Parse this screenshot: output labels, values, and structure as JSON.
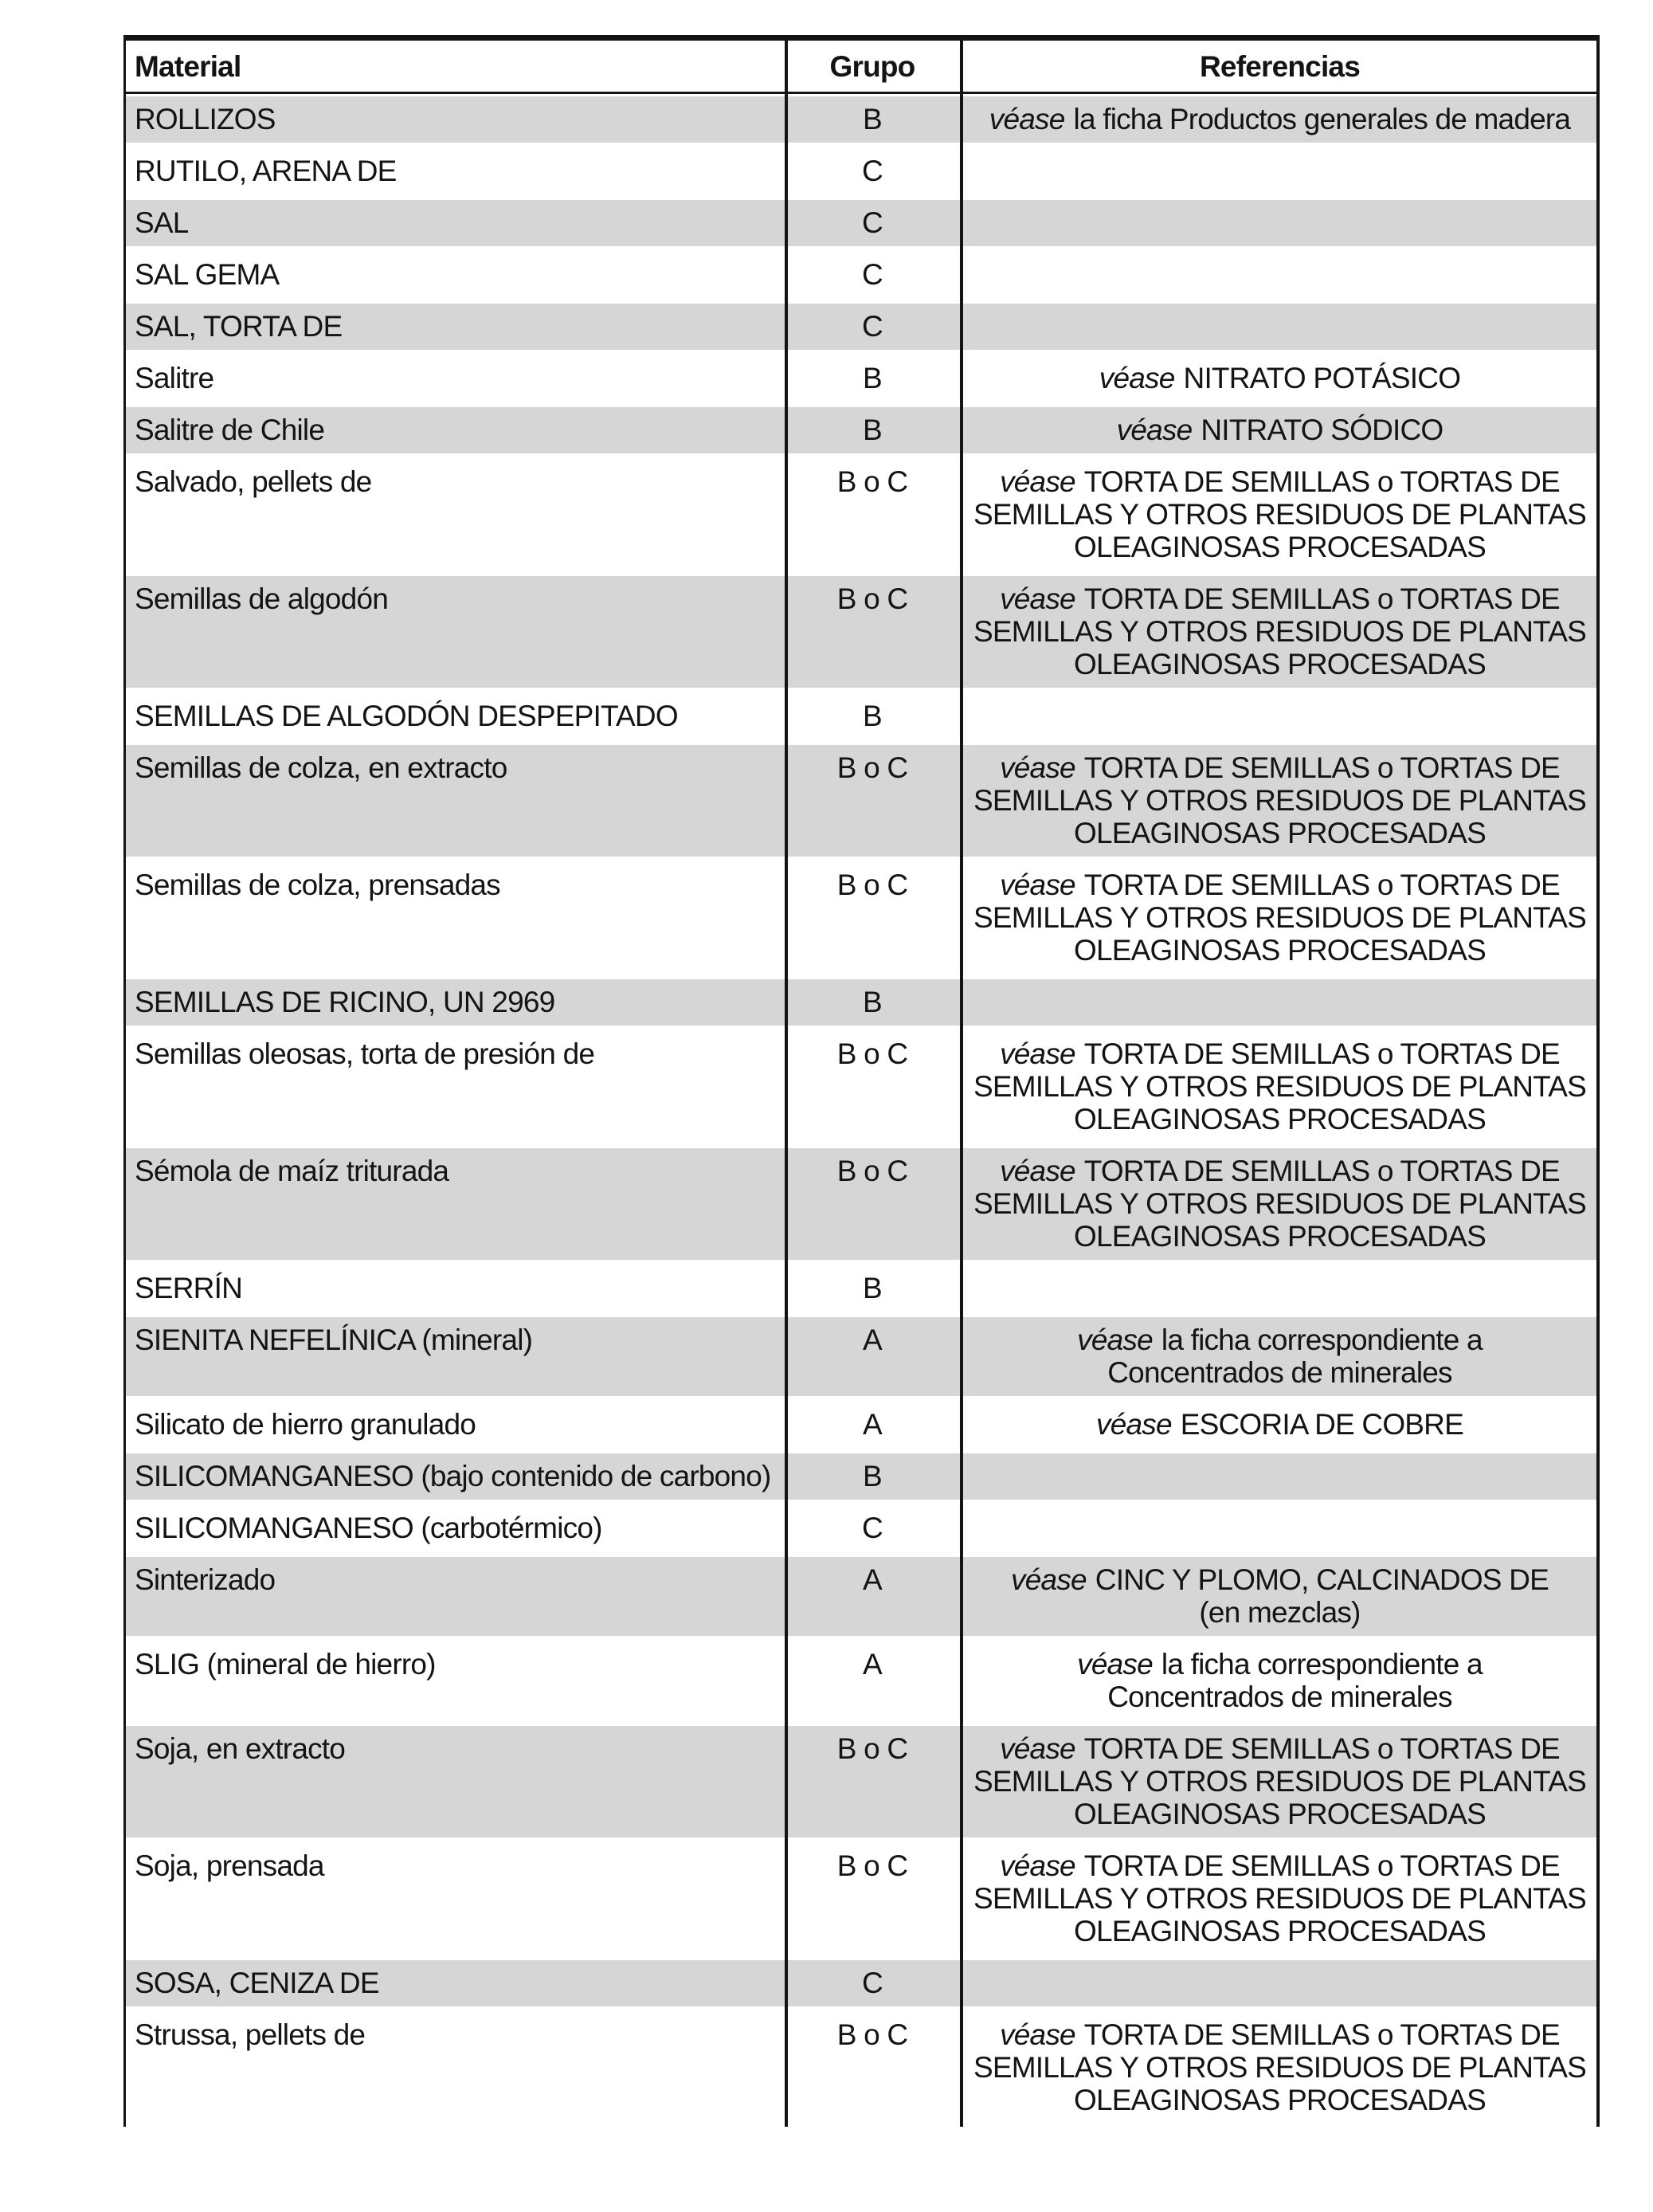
{
  "colors": {
    "shade": "#d6d6d6",
    "line": "#141414"
  },
  "table": {
    "headers": {
      "material": "Material",
      "grupo": "Grupo",
      "referencias": "Referencias"
    },
    "rows": [
      {
        "material": "ROLLIZOS",
        "grupo": "B",
        "ref_lead": "véase",
        "ref_rest": "la ficha Productos generales de madera"
      },
      {
        "material": "RUTILO, ARENA DE",
        "grupo": "C",
        "ref_lead": "",
        "ref_rest": ""
      },
      {
        "material": "SAL",
        "grupo": "C",
        "ref_lead": "",
        "ref_rest": ""
      },
      {
        "material": "SAL GEMA",
        "grupo": "C",
        "ref_lead": "",
        "ref_rest": ""
      },
      {
        "material": "SAL, TORTA DE",
        "grupo": "C",
        "ref_lead": "",
        "ref_rest": ""
      },
      {
        "material": "Salitre",
        "grupo": "B",
        "ref_lead": "véase",
        "ref_rest": "NITRATO POTÁSICO"
      },
      {
        "material": "Salitre de Chile",
        "grupo": "B",
        "ref_lead": "véase",
        "ref_rest": "NITRATO SÓDICO"
      },
      {
        "material": "Salvado, pellets de",
        "grupo": "B o C",
        "ref_lead": "véase",
        "ref_rest": "TORTA DE SEMILLAS o TORTAS DE\nSEMILLAS Y OTROS RESIDUOS DE PLANTAS\nOLEAGINOSAS PROCESADAS"
      },
      {
        "material": "Semillas de algodón",
        "grupo": "B o C",
        "ref_lead": "véase",
        "ref_rest": "TORTA DE SEMILLAS o TORTAS DE\nSEMILLAS Y OTROS RESIDUOS DE PLANTAS\nOLEAGINOSAS PROCESADAS"
      },
      {
        "material": "SEMILLAS DE ALGODÓN DESPEPITADO",
        "grupo": "B",
        "ref_lead": "",
        "ref_rest": ""
      },
      {
        "material": "Semillas de colza, en extracto",
        "grupo": "B o C",
        "ref_lead": "véase",
        "ref_rest": "TORTA DE SEMILLAS o TORTAS DE\nSEMILLAS Y OTROS RESIDUOS DE PLANTAS\nOLEAGINOSAS PROCESADAS"
      },
      {
        "material": "Semillas de colza, prensadas",
        "grupo": "B o C",
        "ref_lead": "véase",
        "ref_rest": "TORTA DE SEMILLAS o TORTAS DE\nSEMILLAS Y OTROS RESIDUOS DE PLANTAS\nOLEAGINOSAS PROCESADAS"
      },
      {
        "material": "SEMILLAS DE RICINO, UN 2969",
        "grupo": "B",
        "ref_lead": "",
        "ref_rest": ""
      },
      {
        "material": "Semillas oleosas, torta de presión de",
        "grupo": "B o C",
        "ref_lead": "véase",
        "ref_rest": "TORTA DE SEMILLAS o TORTAS DE\nSEMILLAS Y OTROS RESIDUOS DE PLANTAS\nOLEAGINOSAS PROCESADAS"
      },
      {
        "material": "Sémola de maíz triturada",
        "grupo": "B o C",
        "ref_lead": "véase",
        "ref_rest": "TORTA DE SEMILLAS o TORTAS DE\nSEMILLAS Y OTROS RESIDUOS DE PLANTAS\nOLEAGINOSAS PROCESADAS"
      },
      {
        "material": "SERRÍN",
        "grupo": "B",
        "ref_lead": "",
        "ref_rest": ""
      },
      {
        "material": "SIENITA NEFELÍNICA (mineral)",
        "grupo": "A",
        "ref_lead": "véase",
        "ref_rest": "la ficha correspondiente a\nConcentrados de minerales"
      },
      {
        "material": "Silicato de hierro granulado",
        "grupo": "A",
        "ref_lead": "véase",
        "ref_rest": "ESCORIA DE COBRE"
      },
      {
        "material": "SILICOMANGANESO (bajo contenido de carbono)",
        "grupo": "B",
        "ref_lead": "",
        "ref_rest": ""
      },
      {
        "material": "SILICOMANGANESO (carbotérmico)",
        "grupo": "C",
        "ref_lead": "",
        "ref_rest": ""
      },
      {
        "material": "Sinterizado",
        "grupo": "A",
        "ref_lead": "véase",
        "ref_rest": "CINC Y PLOMO, CALCINADOS DE\n(en mezclas)"
      },
      {
        "material": "SLIG (mineral de hierro)",
        "grupo": "A",
        "ref_lead": "véase",
        "ref_rest": "la ficha correspondiente a\nConcentrados de minerales"
      },
      {
        "material": "Soja, en extracto",
        "grupo": "B o C",
        "ref_lead": "véase",
        "ref_rest": "TORTA DE SEMILLAS o TORTAS DE\nSEMILLAS Y OTROS RESIDUOS DE PLANTAS\nOLEAGINOSAS PROCESADAS"
      },
      {
        "material": "Soja, prensada",
        "grupo": "B o C",
        "ref_lead": "véase",
        "ref_rest": "TORTA DE SEMILLAS o TORTAS DE\nSEMILLAS Y OTROS RESIDUOS DE PLANTAS\nOLEAGINOSAS PROCESADAS"
      },
      {
        "material": "SOSA, CENIZA DE",
        "grupo": "C",
        "ref_lead": "",
        "ref_rest": ""
      },
      {
        "material": "Strussa, pellets de",
        "grupo": "B o C",
        "ref_lead": "véase",
        "ref_rest": "TORTA DE SEMILLAS o TORTAS DE\nSEMILLAS Y OTROS RESIDUOS DE PLANTAS\nOLEAGINOSAS PROCESADAS"
      }
    ]
  }
}
